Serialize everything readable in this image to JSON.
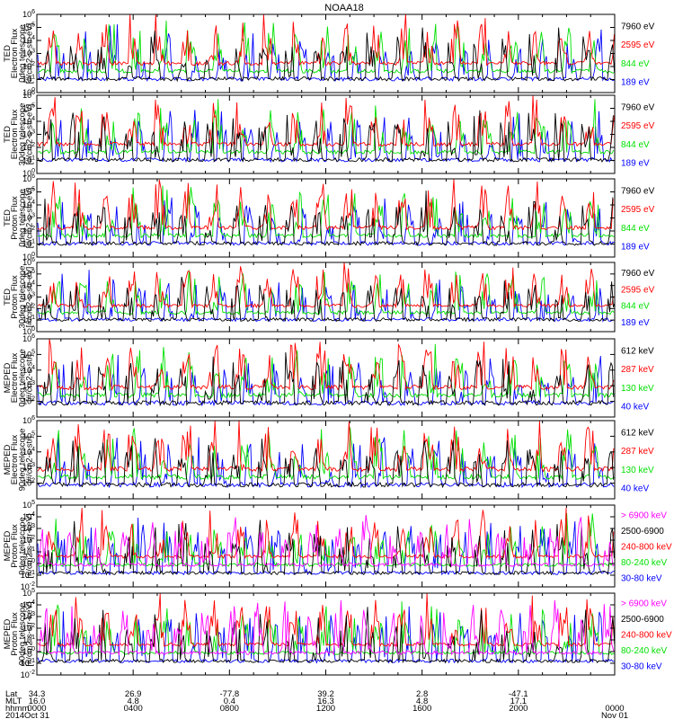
{
  "title": "NOAA18",
  "colors": {
    "black": "#000000",
    "red": "#ff0000",
    "green": "#00e000",
    "blue": "#0000ff",
    "magenta": "#ff00ff"
  },
  "chart_data": [
    {
      "type": "line",
      "panel": 1,
      "ylabel": [
        "TED",
        "Electron Flux",
        "0deg telescope",
        "[#/cm2-s-str-eV]"
      ],
      "y_scale": "log",
      "ylim_exp": [
        0,
        6
      ],
      "y_ticks": [
        "10^0",
        "10^1",
        "10^2",
        "10^3",
        "10^4",
        "10^5",
        "10^6"
      ],
      "legend": [
        {
          "label": "7960 eV",
          "color": "#000000"
        },
        {
          "label": "2595 eV",
          "color": "#ff0000"
        },
        {
          "label": "844 eV",
          "color": "#00e000"
        },
        {
          "label": "189 eV",
          "color": "#0000ff"
        }
      ]
    },
    {
      "type": "line",
      "panel": 2,
      "ylabel": [
        "TED",
        "Electron Flux",
        "30deg telescope",
        "[#/cm2-s-str-eV]"
      ],
      "y_scale": "log",
      "ylim_exp": [
        0,
        6
      ],
      "y_ticks": [
        "10^0",
        "10^1",
        "10^2",
        "10^3",
        "10^4",
        "10^5",
        "10^6"
      ],
      "legend": [
        {
          "label": "7960 eV",
          "color": "#000000"
        },
        {
          "label": "2595 eV",
          "color": "#ff0000"
        },
        {
          "label": "844 eV",
          "color": "#00e000"
        },
        {
          "label": "189 eV",
          "color": "#0000ff"
        }
      ]
    },
    {
      "type": "line",
      "panel": 3,
      "ylabel": [
        "TED",
        "Proton Flux",
        "0deg telescope",
        "[#/cm2-s-str-eV]"
      ],
      "y_scale": "log",
      "ylim_exp": [
        0,
        6
      ],
      "y_ticks": [
        "10^0",
        "10^1",
        "10^2",
        "10^3",
        "10^4",
        "10^5",
        "10^6"
      ],
      "legend": [
        {
          "label": "7960 eV",
          "color": "#000000"
        },
        {
          "label": "2595 eV",
          "color": "#ff0000"
        },
        {
          "label": "844 eV",
          "color": "#00e000"
        },
        {
          "label": "189 eV",
          "color": "#0000ff"
        }
      ]
    },
    {
      "type": "line",
      "panel": 4,
      "ylabel": [
        "TED",
        "Proton Flux",
        "30deg telescope",
        "[#/cm2-s-str-eV]"
      ],
      "y_scale": "log",
      "ylim_exp": [
        0,
        6
      ],
      "y_ticks": [
        "10^0",
        "10^1",
        "10^2",
        "10^3",
        "10^4",
        "10^5",
        "10^6"
      ],
      "legend": [
        {
          "label": "7960 eV",
          "color": "#000000"
        },
        {
          "label": "2595 eV",
          "color": "#ff0000"
        },
        {
          "label": "844 eV",
          "color": "#00e000"
        },
        {
          "label": "189 eV",
          "color": "#0000ff"
        }
      ]
    },
    {
      "type": "line",
      "panel": 5,
      "ylabel": [
        "MEPED",
        "Electron Flux",
        "0deg telescope",
        "[#/cm2-s-str]"
      ],
      "y_scale": "log",
      "ylim_exp": [
        1,
        6
      ],
      "y_ticks": [
        "10^2",
        "10^3",
        "10^4",
        "10^5",
        "10^6"
      ],
      "legend": [
        {
          "label": "612 keV",
          "color": "#000000"
        },
        {
          "label": "287 keV",
          "color": "#ff0000"
        },
        {
          "label": "130 keV",
          "color": "#00e000"
        },
        {
          "label": "40 keV",
          "color": "#0000ff"
        }
      ]
    },
    {
      "type": "line",
      "panel": 6,
      "ylabel": [
        "MEPED",
        "Electron Flux",
        "90deg telescope",
        "[#/cm2-s-str]"
      ],
      "y_scale": "log",
      "ylim_exp": [
        1,
        6
      ],
      "y_ticks": [
        "10^2",
        "10^3",
        "10^4",
        "10^5",
        "10^6"
      ],
      "legend": [
        {
          "label": "612 keV",
          "color": "#000000"
        },
        {
          "label": "287 keV",
          "color": "#ff0000"
        },
        {
          "label": "130 keV",
          "color": "#00e000"
        },
        {
          "label": "40 keV",
          "color": "#0000ff"
        }
      ]
    },
    {
      "type": "line",
      "panel": 7,
      "ylabel": [
        "MEPED",
        "Proton Flux",
        "0deg telescope",
        "[#/cm2-s-str-keV]"
      ],
      "y_scale": "log",
      "ylim_exp": [
        -2,
        5
      ],
      "y_ticks": [
        "10^-2",
        "10^-1",
        "10^0",
        "10^1",
        "10^2",
        "10^3",
        "10^4",
        "10^5"
      ],
      "legend": [
        {
          "label": "> 6900 keV",
          "color": "#ff00ff"
        },
        {
          "label": "2500-6900",
          "color": "#000000"
        },
        {
          "label": "240-800 keV",
          "color": "#ff0000"
        },
        {
          "label": "80-240 keV",
          "color": "#00e000"
        },
        {
          "label": "30-80 keV",
          "color": "#0000ff"
        }
      ]
    },
    {
      "type": "line",
      "panel": 8,
      "ylabel": [
        "MEPED",
        "Proton Flux",
        "90deg telescope",
        "[#/cm2-s-str-keV]"
      ],
      "y_scale": "log",
      "ylim_exp": [
        -2,
        5
      ],
      "y_ticks": [
        "10^-2",
        "10^-1",
        "10^0",
        "10^1",
        "10^2",
        "10^3",
        "10^4",
        "10^5"
      ],
      "legend": [
        {
          "label": "> 6900 keV",
          "color": "#ff00ff"
        },
        {
          "label": "2500-6900",
          "color": "#000000"
        },
        {
          "label": "240-800 keV",
          "color": "#ff0000"
        },
        {
          "label": "80-240 keV",
          "color": "#00e000"
        },
        {
          "label": "30-80 keV",
          "color": "#0000ff"
        }
      ]
    }
  ],
  "x_axis": {
    "row_labels": [
      "Lat",
      "MLT",
      "hhmm",
      "2014"
    ],
    "ticks": [
      {
        "hour": 0,
        "lat": "34.3",
        "mlt": "16.0",
        "hhmm": "0000",
        "date": "Oct 31"
      },
      {
        "hour": 4,
        "lat": "26.9",
        "mlt": "4.8",
        "hhmm": "0400",
        "date": ""
      },
      {
        "hour": 8,
        "lat": "-77.8",
        "mlt": "0.4",
        "hhmm": "0800",
        "date": ""
      },
      {
        "hour": 12,
        "lat": "39.2",
        "mlt": "16.3",
        "hhmm": "1200",
        "date": ""
      },
      {
        "hour": 16,
        "lat": "2.8",
        "mlt": "4.8",
        "hhmm": "1600",
        "date": ""
      },
      {
        "hour": 20,
        "lat": "-47.1",
        "mlt": "17.1",
        "hhmm": "2000",
        "date": ""
      },
      {
        "hour": 24,
        "lat": "",
        "mlt": "",
        "hhmm": "0000",
        "date": "Nov 01"
      }
    ]
  }
}
